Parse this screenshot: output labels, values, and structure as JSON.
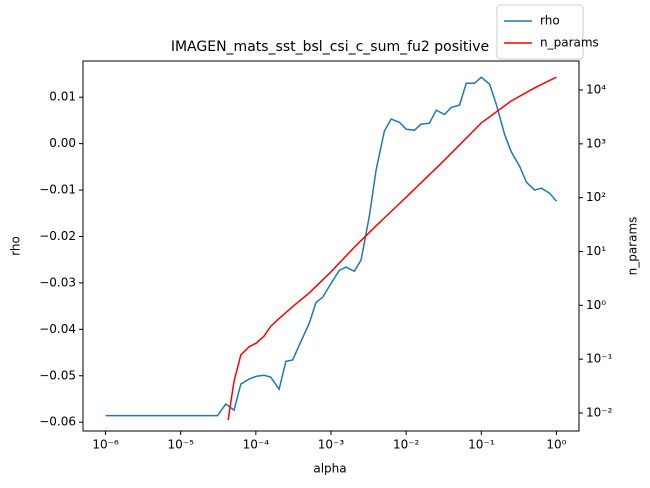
{
  "chart_data": {
    "type": "line",
    "title": "IMAGEN_mats_sst_bsl_csi_c_sum_fu2 positive",
    "x_label": "alpha",
    "y_label": "rho",
    "y2_label": "n_params",
    "xscale": "log",
    "y2scale": "log",
    "xlim": [
      5.012e-07,
      1.995
    ],
    "ylim": [
      -0.0619,
      0.0178
    ],
    "y2lim": [
      0.00463,
      34600
    ],
    "xticks": [
      {
        "value": 1e-06,
        "label": "10⁻⁶"
      },
      {
        "value": 1e-05,
        "label": "10⁻⁵"
      },
      {
        "value": 0.0001,
        "label": "10⁻⁴"
      },
      {
        "value": 0.001,
        "label": "10⁻³"
      },
      {
        "value": 0.01,
        "label": "10⁻²"
      },
      {
        "value": 0.1,
        "label": "10⁻¹"
      },
      {
        "value": 1,
        "label": "10⁰"
      }
    ],
    "yticks": [
      {
        "value": 0.01,
        "label": "0.01"
      },
      {
        "value": 0,
        "label": "0.00"
      },
      {
        "value": -0.01,
        "label": "−0.01"
      },
      {
        "value": -0.02,
        "label": "−0.02"
      },
      {
        "value": -0.03,
        "label": "−0.03"
      },
      {
        "value": -0.04,
        "label": "−0.04"
      },
      {
        "value": -0.05,
        "label": "−0.05"
      },
      {
        "value": -0.06,
        "label": "−0.06"
      }
    ],
    "y2ticks": [
      {
        "value": 0.01,
        "label": "10⁻²"
      },
      {
        "value": 0.1,
        "label": "10⁻¹"
      },
      {
        "value": 1,
        "label": "10⁰"
      },
      {
        "value": 10,
        "label": "10¹"
      },
      {
        "value": 100,
        "label": "10²"
      },
      {
        "value": 1000,
        "label": "10³"
      },
      {
        "value": 10000,
        "label": "10⁴"
      }
    ],
    "legend": "upper right",
    "series": [
      {
        "name": "rho",
        "color": "#1f77b4",
        "axis": "y",
        "x": [
          1e-06,
          1e-05,
          3.09e-05,
          3.98e-05,
          5.13e-05,
          6.31e-05,
          8.13e-05,
          0.000102,
          0.000129,
          0.000158,
          0.000204,
          0.000251,
          0.000309,
          0.000398,
          0.000513,
          0.000631,
          0.000776,
          0.001,
          0.00129,
          0.00158,
          0.00204,
          0.00251,
          0.00324,
          0.00398,
          0.00513,
          0.00631,
          0.00813,
          0.01,
          0.0129,
          0.0158,
          0.0204,
          0.0251,
          0.0324,
          0.0398,
          0.0513,
          0.0631,
          0.0813,
          0.1,
          0.129,
          0.158,
          0.204,
          0.251,
          0.324,
          0.398,
          0.513,
          0.631,
          0.813,
          1
        ],
        "values": [
          -0.0586,
          -0.0586,
          -0.0586,
          -0.0561,
          -0.0574,
          -0.0518,
          -0.0507,
          -0.0501,
          -0.0499,
          -0.0503,
          -0.0529,
          -0.0469,
          -0.0466,
          -0.0426,
          -0.0387,
          -0.0342,
          -0.0331,
          -0.0301,
          -0.0273,
          -0.0266,
          -0.0275,
          -0.0251,
          -0.0156,
          -0.0057,
          0.0027,
          0.0053,
          0.0046,
          0.0031,
          0.0029,
          0.0042,
          0.0044,
          0.0072,
          0.0063,
          0.0078,
          0.0083,
          0.013,
          0.013,
          0.0143,
          0.0128,
          0.0085,
          0.002,
          -0.0018,
          -0.0049,
          -0.0083,
          -0.01,
          -0.0096,
          -0.0107,
          -0.0124
        ]
      },
      {
        "name": "n_params",
        "color": "#ff0000",
        "axis": "y2",
        "x": [
          4.27e-05,
          5.13e-05,
          6.31e-05,
          8.13e-05,
          0.000102,
          0.000129,
          0.000158,
          0.000204,
          0.000324,
          0.000513,
          0.001,
          0.00204,
          0.00398,
          0.01,
          0.0324,
          0.1,
          0.251,
          0.513,
          1
        ],
        "values": [
          0.0074,
          0.039,
          0.12,
          0.17,
          0.2,
          0.27,
          0.41,
          0.57,
          1.0,
          1.7,
          4.2,
          12,
          30,
          102,
          500,
          2450,
          6300,
          11000,
          17400
        ]
      }
    ]
  }
}
